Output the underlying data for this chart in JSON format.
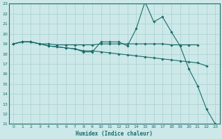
{
  "title": "",
  "xlabel": "Humidex (Indice chaleur)",
  "xlim": [
    -0.5,
    23.5
  ],
  "ylim": [
    11,
    23
  ],
  "xticks": [
    0,
    1,
    2,
    3,
    4,
    5,
    6,
    7,
    8,
    9,
    10,
    11,
    12,
    13,
    14,
    15,
    16,
    17,
    18,
    19,
    20,
    21,
    22,
    23
  ],
  "yticks": [
    11,
    12,
    13,
    14,
    15,
    16,
    17,
    18,
    19,
    20,
    21,
    22,
    23
  ],
  "background_color": "#cce8e8",
  "grid_color": "#b0d4d4",
  "line_color": "#1a6b6b",
  "series": [
    {
      "x": [
        0,
        1,
        2,
        3,
        4,
        5,
        6,
        7,
        8,
        9,
        10,
        11,
        12,
        13,
        14,
        15,
        16,
        17,
        18,
        19,
        20,
        21
      ],
      "y": [
        19,
        19.2,
        19.2,
        19.0,
        19.0,
        18.9,
        18.9,
        18.9,
        18.9,
        18.9,
        19.0,
        19.0,
        19.0,
        19.0,
        19.0,
        19.0,
        19.0,
        19.0,
        18.9,
        18.9,
        18.9,
        18.9
      ]
    },
    {
      "x": [
        0,
        1,
        2,
        3,
        4,
        5,
        6,
        7,
        8,
        9,
        10,
        11,
        12,
        13,
        14,
        15,
        16,
        17,
        18,
        19,
        20,
        21,
        22,
        23
      ],
      "y": [
        19,
        19.2,
        19.2,
        19.0,
        18.8,
        18.7,
        18.6,
        18.5,
        18.2,
        18.2,
        19.2,
        19.2,
        19.2,
        18.8,
        20.5,
        23.2,
        21.2,
        21.7,
        20.2,
        18.8,
        16.5,
        14.8,
        12.5,
        11.0
      ]
    },
    {
      "x": [
        0,
        1,
        2,
        3,
        4,
        5,
        6,
        7,
        8,
        9,
        10,
        11,
        12,
        13,
        14,
        15,
        16,
        17,
        18,
        19,
        20,
        21,
        22
      ],
      "y": [
        19,
        19.2,
        19.2,
        19.0,
        18.8,
        18.7,
        18.6,
        18.5,
        18.3,
        18.3,
        18.2,
        18.1,
        18.0,
        17.9,
        17.8,
        17.7,
        17.6,
        17.5,
        17.4,
        17.3,
        17.2,
        17.1,
        16.8
      ]
    }
  ]
}
